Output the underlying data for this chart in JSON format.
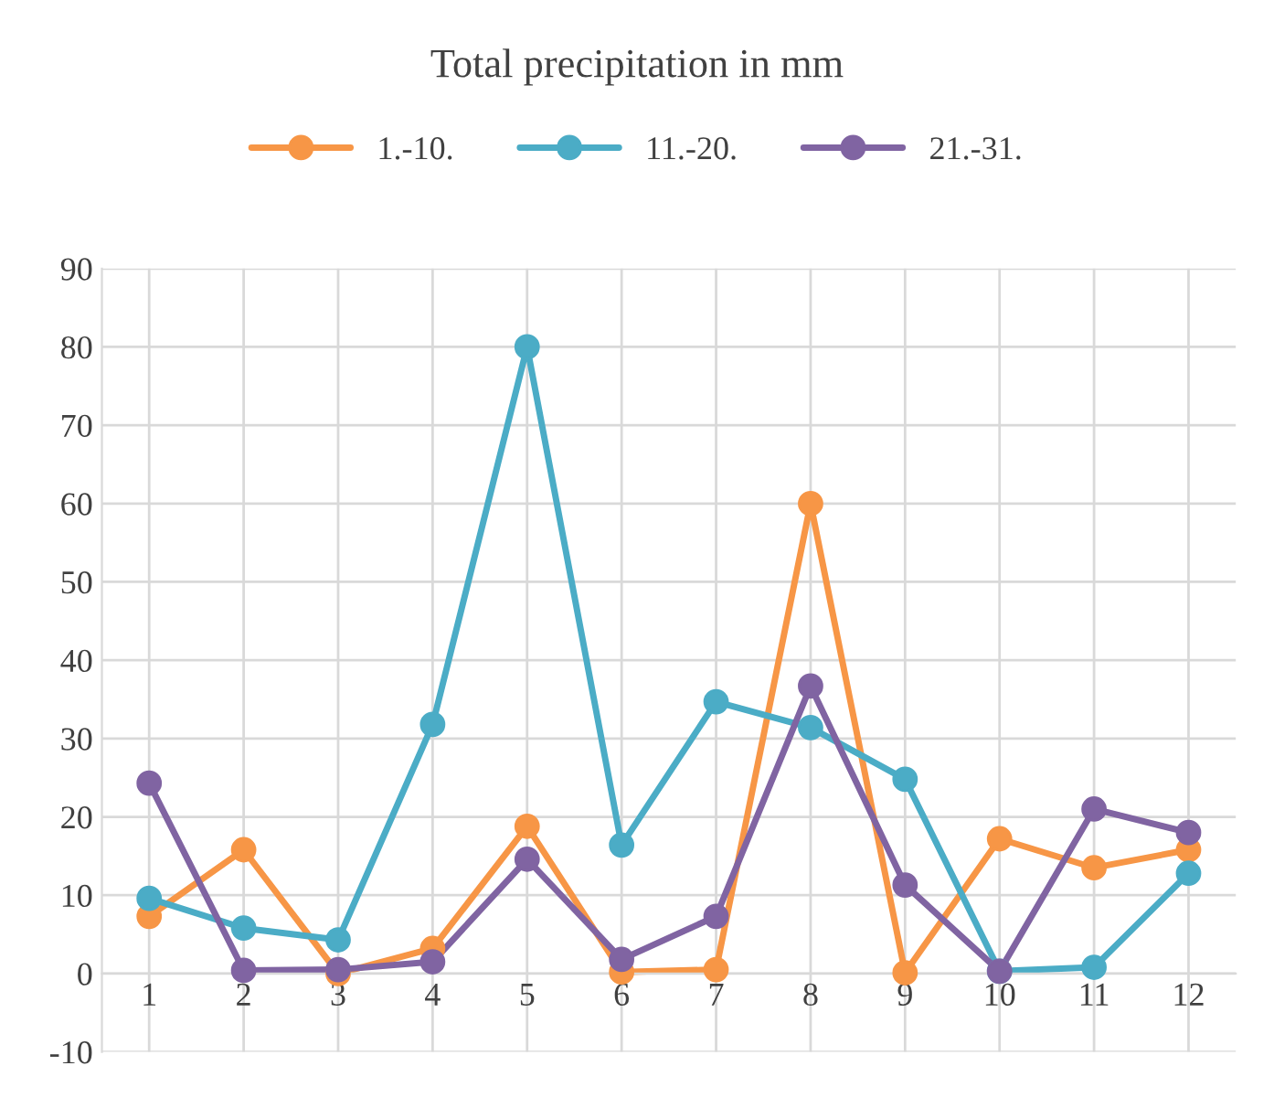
{
  "chart_data": {
    "type": "line",
    "title": "Total precipitation in mm",
    "categories": [
      "1",
      "2",
      "3",
      "4",
      "5",
      "6",
      "7",
      "8",
      "9",
      "10",
      "11",
      "12"
    ],
    "series": [
      {
        "name": "1.-10.",
        "color": "#f79646",
        "values": [
          7.3,
          15.8,
          0,
          3.2,
          18.8,
          0.2,
          0.5,
          60,
          0.1,
          17.2,
          13.5,
          15.8
        ]
      },
      {
        "name": "11.-20.",
        "color": "#4bacc6",
        "values": [
          9.6,
          5.8,
          4.3,
          31.8,
          80,
          16.4,
          34.7,
          31.4,
          24.8,
          0.3,
          0.8,
          12.8
        ]
      },
      {
        "name": "21.-31.",
        "color": "#8064a2",
        "values": [
          24.3,
          0.4,
          0.5,
          1.5,
          14.6,
          1.8,
          7.3,
          36.7,
          11.3,
          0.3,
          21,
          18
        ]
      }
    ],
    "ylim": [
      -10,
      90
    ],
    "yticks": [
      -10,
      0,
      10,
      20,
      30,
      40,
      50,
      60,
      70,
      80,
      90
    ],
    "grid": true,
    "legend": "top",
    "marker": "circle",
    "line_style": "solid"
  }
}
